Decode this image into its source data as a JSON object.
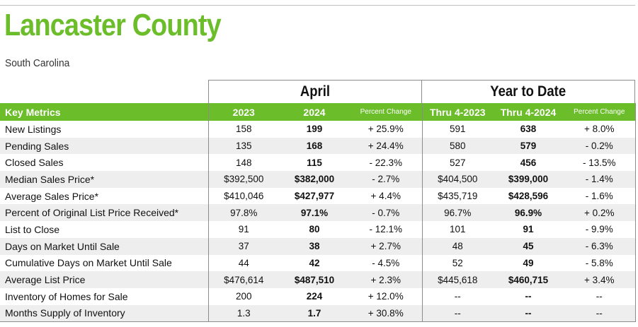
{
  "header": {
    "title": "Lancaster County",
    "subtitle": "South Carolina"
  },
  "groups": {
    "april": "April",
    "ytd": "Year to Date"
  },
  "columns": {
    "metric": "Key Metrics",
    "y2023": "2023",
    "y2024": "2024",
    "pct_april": "Percent Change",
    "thru2023": "Thru 4-2023",
    "thru2024": "Thru 4-2024",
    "pct_ytd": "Percent Change"
  },
  "rows": [
    {
      "name": "New Listings",
      "a2023": "158",
      "a2024": "199",
      "apct": "+ 25.9%",
      "y2023": "591",
      "y2024": "638",
      "ypct": "+ 8.0%"
    },
    {
      "name": "Pending Sales",
      "a2023": "135",
      "a2024": "168",
      "apct": "+ 24.4%",
      "y2023": "580",
      "y2024": "579",
      "ypct": "- 0.2%"
    },
    {
      "name": "Closed Sales",
      "a2023": "148",
      "a2024": "115",
      "apct": "- 22.3%",
      "y2023": "527",
      "y2024": "456",
      "ypct": "- 13.5%"
    },
    {
      "name": "Median Sales Price*",
      "a2023": "$392,500",
      "a2024": "$382,000",
      "apct": "- 2.7%",
      "y2023": "$404,500",
      "y2024": "$399,000",
      "ypct": "- 1.4%"
    },
    {
      "name": "Average Sales Price*",
      "a2023": "$410,046",
      "a2024": "$427,977",
      "apct": "+ 4.4%",
      "y2023": "$435,719",
      "y2024": "$428,596",
      "ypct": "- 1.6%"
    },
    {
      "name": "Percent of Original List Price Received*",
      "a2023": "97.8%",
      "a2024": "97.1%",
      "apct": "- 0.7%",
      "y2023": "96.7%",
      "y2024": "96.9%",
      "ypct": "+ 0.2%"
    },
    {
      "name": "List to Close",
      "a2023": "91",
      "a2024": "80",
      "apct": "- 12.1%",
      "y2023": "101",
      "y2024": "91",
      "ypct": "- 9.9%"
    },
    {
      "name": "Days on Market Until Sale",
      "a2023": "37",
      "a2024": "38",
      "apct": "+ 2.7%",
      "y2023": "48",
      "y2024": "45",
      "ypct": "- 6.3%"
    },
    {
      "name": "Cumulative Days on Market Until Sale",
      "a2023": "44",
      "a2024": "42",
      "apct": "- 4.5%",
      "y2023": "52",
      "y2024": "49",
      "ypct": "- 5.8%"
    },
    {
      "name": "Average List Price",
      "a2023": "$476,614",
      "a2024": "$487,510",
      "apct": "+ 2.3%",
      "y2023": "$445,618",
      "y2024": "$460,715",
      "ypct": "+ 3.4%"
    },
    {
      "name": "Inventory of Homes for Sale",
      "a2023": "200",
      "a2024": "224",
      "apct": "+ 12.0%",
      "y2023": "--",
      "y2024": "--",
      "ypct": "--"
    },
    {
      "name": "Months Supply of Inventory",
      "a2023": "1.3",
      "a2024": "1.7",
      "apct": "+ 30.8%",
      "y2023": "--",
      "y2024": "--",
      "ypct": "--"
    }
  ],
  "colors": {
    "brand_green": "#6bbd2a",
    "row_alt": "#eeeeee"
  }
}
